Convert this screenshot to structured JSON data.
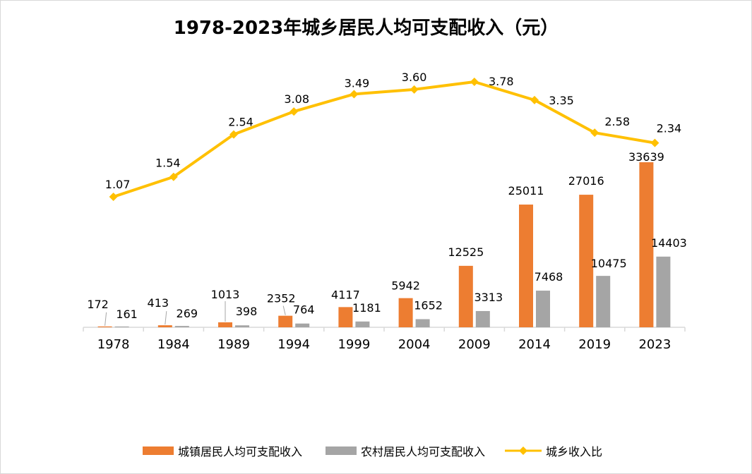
{
  "chart_data": {
    "type": "bar",
    "title": "1978-2023年城乡居民人均可支配收入（元）",
    "categories": [
      "1978",
      "1984",
      "1989",
      "1994",
      "1999",
      "2004",
      "2009",
      "2014",
      "2019",
      "2023"
    ],
    "series": [
      {
        "name": "城镇居民人均可支配收入",
        "type": "bar",
        "color": "#ED7D31",
        "values": [
          172,
          413,
          1013,
          2352,
          4117,
          5942,
          12525,
          25011,
          27016,
          33639
        ],
        "labels": [
          "172",
          "413",
          "1013",
          "2352",
          "4117",
          "5942",
          "12525",
          "25011",
          "27016",
          "33639"
        ]
      },
      {
        "name": "农村居民人均可支配收入",
        "type": "bar",
        "color": "#A5A5A5",
        "values": [
          161,
          269,
          398,
          764,
          1181,
          1652,
          3313,
          7468,
          10475,
          14403
        ],
        "labels": [
          "161",
          "269",
          "398",
          "764",
          "1181",
          "1652",
          "3313",
          "7468",
          "10475",
          "14403"
        ]
      },
      {
        "name": "城乡收入比",
        "type": "line",
        "axis": "secondary",
        "color": "#FFC000",
        "values": [
          1.07,
          1.54,
          2.54,
          3.08,
          3.49,
          3.6,
          3.78,
          3.35,
          2.58,
          2.34
        ],
        "labels": [
          "1.07",
          "1.54",
          "2.54",
          "3.08",
          "3.49",
          "3.60",
          "3.78",
          "3.35",
          "2.58",
          "2.34"
        ]
      }
    ],
    "primary_axis_visible": false,
    "secondary_axis_visible": false,
    "grid": false,
    "legend_position": "bottom"
  }
}
